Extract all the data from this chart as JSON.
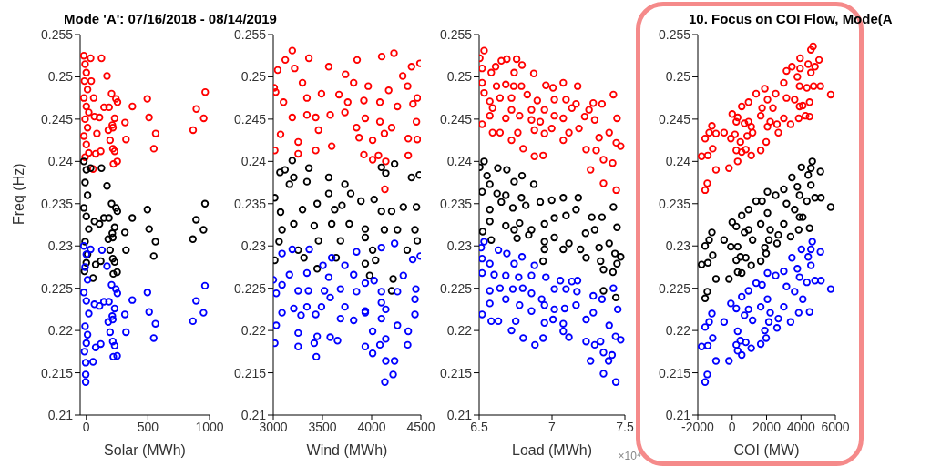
{
  "chart_data": [
    {
      "type": "scatter",
      "title": "Mode 'A': 07/16/2018 - 08/14/2019",
      "xlabel": "Solar (MWh)",
      "ylabel": "Freq (Hz)",
      "xlim": [
        -50,
        1000
      ],
      "xticks": [
        0,
        500,
        1000
      ],
      "ylim": [
        0.21,
        0.255
      ],
      "yticks": [
        0.21,
        0.215,
        0.22,
        0.225,
        0.23,
        0.235,
        0.24,
        0.245,
        0.25,
        0.255
      ],
      "marker": "circle",
      "series": [
        {
          "color": "#ff0000",
          "x": [
            -20,
            -10,
            0,
            -15,
            10,
            -20,
            0,
            20,
            -10,
            10,
            -20,
            0,
            20,
            -10,
            35,
            123,
            168,
            40,
            60,
            205,
            240,
            253,
            144,
            185,
            374,
            495,
            965,
            893,
            953,
            867,
            509,
            563,
            548,
            314,
            322,
            230,
            211,
            216,
            107,
            66,
            179,
            86,
            193,
            216,
            230,
            220,
            251,
            117,
            76,
            55
          ],
          "values": [
            0.2525,
            0.2515,
            0.2505,
            0.2495,
            0.2485,
            0.2475,
            0.2465,
            0.2458,
            0.245,
            0.244,
            0.243,
            0.242,
            0.241,
            0.2405,
            0.2522,
            0.2522,
            0.2501,
            0.2495,
            0.2475,
            0.248,
            0.2474,
            0.247,
            0.2464,
            0.2464,
            0.2465,
            0.2474,
            0.2482,
            0.2462,
            0.2451,
            0.2437,
            0.2452,
            0.2433,
            0.2415,
            0.2446,
            0.2426,
            0.2451,
            0.2443,
            0.244,
            0.2452,
            0.2453,
            0.2437,
            0.2433,
            0.2425,
            0.2415,
            0.2412,
            0.2397,
            0.24,
            0.2412,
            0.2409,
            0.2391
          ]
        },
        {
          "color": "#000000",
          "x": [
            963,
            891,
            951,
            865,
            496,
            510,
            561,
            547,
            373,
            313,
            322,
            252,
            240,
            205,
            230,
            211,
            215,
            193,
            215,
            230,
            219,
            250,
            178,
            143,
            184,
            107,
            66,
            123,
            35,
            168,
            117,
            76,
            55,
            -20,
            0,
            -10,
            10,
            -20,
            0,
            20,
            -10,
            10,
            0,
            -15
          ],
          "values": [
            0.235,
            0.2331,
            0.2319,
            0.2308,
            0.2343,
            0.232,
            0.2305,
            0.2288,
            0.2333,
            0.2316,
            0.2295,
            0.2341,
            0.2345,
            0.235,
            0.2322,
            0.2315,
            0.231,
            0.2295,
            0.2285,
            0.2281,
            0.2267,
            0.2269,
            0.2308,
            0.2333,
            0.2333,
            0.2326,
            0.2329,
            0.2392,
            0.2392,
            0.2371,
            0.2282,
            0.2278,
            0.2262,
            0.24,
            0.239,
            0.2375,
            0.236,
            0.2345,
            0.2335,
            0.232,
            0.2305,
            0.229,
            0.228,
            0.227
          ]
        },
        {
          "color": "#0000ff",
          "x": [
            963,
            891,
            951,
            865,
            496,
            510,
            561,
            547,
            373,
            313,
            322,
            252,
            240,
            205,
            230,
            211,
            215,
            193,
            215,
            230,
            219,
            250,
            178,
            143,
            184,
            107,
            66,
            127,
            35,
            168,
            117,
            76,
            55,
            -20,
            0,
            -10,
            10,
            -20,
            0,
            20,
            -10,
            10,
            0,
            -15,
            -5,
            -5,
            -5
          ],
          "values": [
            0.2253,
            0.2235,
            0.2221,
            0.2211,
            0.2245,
            0.2222,
            0.2208,
            0.2191,
            0.2236,
            0.2219,
            0.2198,
            0.2244,
            0.2249,
            0.2254,
            0.2226,
            0.2217,
            0.2213,
            0.2198,
            0.2187,
            0.2182,
            0.2169,
            0.217,
            0.221,
            0.2234,
            0.2234,
            0.2229,
            0.2231,
            0.2295,
            0.2296,
            0.2276,
            0.2184,
            0.218,
            0.2163,
            0.23,
            0.229,
            0.2275,
            0.226,
            0.2245,
            0.2235,
            0.222,
            0.2205,
            0.2195,
            0.2185,
            0.2175,
            0.2162,
            0.2148,
            0.2139
          ]
        }
      ]
    },
    {
      "type": "scatter",
      "xlabel": "Wind (MWh)",
      "xlim": [
        3000,
        4500
      ],
      "xticks": [
        3000,
        3500,
        4000,
        4500
      ],
      "ylim": [
        0.21,
        0.255
      ],
      "yticks": [
        0.21,
        0.215,
        0.22,
        0.225,
        0.23,
        0.235,
        0.24,
        0.245,
        0.25,
        0.255
      ],
      "marker": "circle",
      "series": [
        {
          "color": "#ff0000",
          "x": [
            3193,
            3362,
            3122,
            3045,
            3217,
            3564,
            3734,
            3852,
            4102,
            4227,
            4491,
            4405,
            4316,
            3009,
            3024,
            3297,
            3817,
            3965,
            4173,
            4366,
            4464,
            3104,
            3342,
            3490,
            3668,
            3757,
            3921,
            4084,
            4262,
            4420,
            3193,
            3342,
            3431,
            3579,
            3728,
            3846,
            3935,
            4084,
            4203,
            4455,
            3074,
            3253,
            3460,
            3594,
            3872,
            4010,
            4129,
            4372,
            4464,
            3015,
            3253,
            3431,
            3921,
            4010,
            4069,
            4143,
            4134,
            4372
          ],
          "values": [
            0.2531,
            0.2522,
            0.252,
            0.2508,
            0.251,
            0.2512,
            0.2503,
            0.252,
            0.2524,
            0.2528,
            0.2516,
            0.2512,
            0.2501,
            0.2487,
            0.2482,
            0.2493,
            0.2493,
            0.2489,
            0.2484,
            0.2489,
            0.2475,
            0.247,
            0.2475,
            0.248,
            0.2479,
            0.247,
            0.2472,
            0.247,
            0.2465,
            0.2468,
            0.2452,
            0.2455,
            0.2452,
            0.2455,
            0.2458,
            0.244,
            0.2451,
            0.2447,
            0.244,
            0.2447,
            0.2432,
            0.2423,
            0.2437,
            0.2418,
            0.2428,
            0.2425,
            0.2433,
            0.2427,
            0.2426,
            0.2413,
            0.2409,
            0.2413,
            0.2408,
            0.2402,
            0.2407,
            0.24,
            0.2367,
            0.2407
          ]
        },
        {
          "color": "#000000",
          "x": [
            3193,
            3068,
            3119,
            3362,
            3208,
            3164,
            3342,
            3564,
            3728,
            3015,
            3074,
            3297,
            3446,
            3564,
            3624,
            3698,
            3787,
            3891,
            4025,
            4099,
            4143,
            4233,
            4405,
            4485,
            4455,
            4322,
            4203,
            4099,
            3208,
            3416,
            3594,
            3772,
            3935,
            4129,
            4262,
            4440,
            3089,
            3059,
            3253,
            3460,
            3683,
            3935,
            4010,
            4361,
            4464,
            3015,
            3312,
            3639,
            3935,
            4040,
            3446,
            3980,
            4218,
            4203
          ],
          "values": [
            0.2401,
            0.2387,
            0.239,
            0.2392,
            0.2381,
            0.2373,
            0.2376,
            0.2381,
            0.2373,
            0.2357,
            0.234,
            0.2343,
            0.235,
            0.2362,
            0.2343,
            0.2348,
            0.2362,
            0.2353,
            0.2355,
            0.2393,
            0.2386,
            0.2397,
            0.2381,
            0.2384,
            0.2346,
            0.2346,
            0.2341,
            0.2341,
            0.2326,
            0.2324,
            0.2326,
            0.2326,
            0.232,
            0.2319,
            0.2319,
            0.2319,
            0.2319,
            0.2305,
            0.2295,
            0.2306,
            0.2306,
            0.231,
            0.2295,
            0.2295,
            0.2306,
            0.2283,
            0.2286,
            0.2286,
            0.2279,
            0.2283,
            0.2273,
            0.2265,
            0.2261,
            0.2247
          ]
        },
        {
          "color": "#0000ff",
          "x": [
            3089,
            3193,
            3366,
            3594,
            3846,
            4099,
            4233,
            4494,
            3000,
            3089,
            3164,
            3342,
            3505,
            3564,
            3728,
            3817,
            3935,
            4025,
            4322,
            4417,
            3030,
            3253,
            3357,
            3520,
            3683,
            3846,
            4099,
            4262,
            4449,
            3208,
            3342,
            3490,
            3579,
            3728,
            3935,
            4099,
            4143,
            4440,
            3089,
            3282,
            3431,
            3683,
            3817,
            3935,
            4099,
            4262,
            4440,
            3030,
            3253,
            3446,
            3579,
            4010,
            4372,
            3015,
            3253,
            3416,
            3653,
            3935,
            4084,
            4143,
            4366,
            3437,
            4010,
            4143,
            4233,
            4218,
            4134
          ],
          "values": [
            0.2291,
            0.2296,
            0.2296,
            0.2286,
            0.2293,
            0.2298,
            0.2303,
            0.2288,
            0.226,
            0.2254,
            0.2266,
            0.2268,
            0.2277,
            0.2263,
            0.2277,
            0.2266,
            0.2256,
            0.2259,
            0.2265,
            0.2284,
            0.2244,
            0.2247,
            0.2247,
            0.2247,
            0.2249,
            0.2246,
            0.2246,
            0.2246,
            0.2249,
            0.2226,
            0.2228,
            0.2228,
            0.2239,
            0.2228,
            0.2223,
            0.2233,
            0.2225,
            0.2237,
            0.2221,
            0.2218,
            0.2219,
            0.2214,
            0.2212,
            0.2221,
            0.2214,
            0.2206,
            0.2219,
            0.2206,
            0.2197,
            0.2193,
            0.2192,
            0.2199,
            0.2199,
            0.2185,
            0.2181,
            0.2185,
            0.2188,
            0.2181,
            0.2183,
            0.219,
            0.2183,
            0.2169,
            0.2173,
            0.2164,
            0.2164,
            0.2148,
            0.2139
          ]
        }
      ]
    },
    {
      "type": "scatter",
      "xlabel": "Load (MWh)",
      "annotations": [
        "×10⁴"
      ],
      "xlim": [
        6.5,
        7.5
      ],
      "xticks": [
        6.5,
        7,
        7.5
      ],
      "ylim": [
        0.21,
        0.255
      ],
      "yticks": [
        0.21,
        0.215,
        0.22,
        0.225,
        0.23,
        0.235,
        0.24,
        0.245,
        0.25,
        0.255
      ],
      "marker": "circle",
      "series": [
        {
          "color": "#ff0000",
          "x": [
            6.504,
            6.534,
            6.52,
            6.583,
            6.613,
            6.652,
            6.69,
            6.757,
            6.794,
            6.875,
            6.74,
            6.52,
            6.534,
            6.619,
            6.683,
            6.737,
            6.79,
            6.958,
            7.007,
            7.077,
            7.176,
            7.421,
            6.573,
            6.643,
            6.722,
            6.83,
            6.899,
            7.016,
            7.096,
            7.165,
            7.283,
            7.343,
            6.592,
            6.722,
            6.859,
            6.948,
            7.136,
            7.254,
            6.52,
            6.573,
            6.683,
            6.777,
            6.859,
            6.919,
            7.016,
            7.077,
            7.224,
            7.293,
            7.446,
            6.592,
            6.643,
            6.722,
            6.765,
            6.879,
            6.948,
            6.998,
            7.077,
            7.116,
            7.185,
            7.323,
            7.392,
            7.441,
            6.802,
            6.939,
            6.879,
            7.234,
            7.303,
            7.353,
            7.471,
            7.416,
            7.264,
            7.353,
            7.441
          ],
          "values": [
            0.2522,
            0.2531,
            0.251,
            0.2505,
            0.2512,
            0.2519,
            0.2521,
            0.2521,
            0.2514,
            0.2504,
            0.2505,
            0.2493,
            0.2481,
            0.2489,
            0.2491,
            0.2489,
            0.2489,
            0.249,
            0.2487,
            0.2493,
            0.2489,
            0.2479,
            0.2471,
            0.2475,
            0.2475,
            0.2479,
            0.2472,
            0.2473,
            0.2473,
            0.2468,
            0.2469,
            0.2468,
            0.2463,
            0.2461,
            0.2461,
            0.2461,
            0.2463,
            0.2461,
            0.2444,
            0.2454,
            0.2451,
            0.2454,
            0.2449,
            0.2447,
            0.2454,
            0.2451,
            0.2453,
            0.2449,
            0.2451,
            0.2434,
            0.2434,
            0.2425,
            0.2434,
            0.2437,
            0.2433,
            0.2439,
            0.2425,
            0.2434,
            0.2439,
            0.2428,
            0.2434,
            0.2422,
            0.2415,
            0.2407,
            0.2406,
            0.2414,
            0.2413,
            0.2402,
            0.2418,
            0.2398,
            0.239,
            0.2374,
            0.2366
          ]
        },
        {
          "color": "#000000",
          "x": [
            6.504,
            6.534,
            6.554,
            6.628,
            6.69,
            6.74,
            6.794,
            6.875,
            6.573,
            6.52,
            6.623,
            6.683,
            6.79,
            6.573,
            6.652,
            6.731,
            6.82,
            6.919,
            6.998,
            7.077,
            7.18,
            7.421,
            6.573,
            6.683,
            6.777,
            6.859,
            6.948,
            7.016,
            7.096,
            7.165,
            7.273,
            7.343,
            6.524,
            6.583,
            6.74,
            6.84,
            6.948,
            7.016,
            7.116,
            7.23,
            7.293,
            7.446,
            6.76,
            6.948,
            7.077,
            7.195,
            7.323,
            7.392,
            7.432,
            6.939,
            7.234,
            7.333,
            7.471,
            7.353,
            7.418,
            7.446,
            7.353,
            7.438
          ],
          "values": [
            0.2393,
            0.24,
            0.2383,
            0.2392,
            0.239,
            0.2376,
            0.2383,
            0.2373,
            0.2373,
            0.2364,
            0.2362,
            0.236,
            0.2357,
            0.2343,
            0.2352,
            0.2345,
            0.2348,
            0.2352,
            0.2354,
            0.2357,
            0.2357,
            0.2346,
            0.2329,
            0.2324,
            0.2327,
            0.2319,
            0.2326,
            0.2333,
            0.2336,
            0.2343,
            0.2334,
            0.2334,
            0.2317,
            0.2307,
            0.2319,
            0.2313,
            0.2305,
            0.231,
            0.2303,
            0.2315,
            0.2319,
            0.2322,
            0.2309,
            0.2296,
            0.2296,
            0.2296,
            0.2298,
            0.2303,
            0.2291,
            0.2282,
            0.2286,
            0.2282,
            0.2287,
            0.2272,
            0.2269,
            0.2279,
            0.2247,
            0.2239
          ]
        },
        {
          "color": "#0000ff",
          "x": [
            6.514,
            6.534,
            6.52,
            6.573,
            6.632,
            6.69,
            6.74,
            6.794,
            6.879,
            6.52,
            6.603,
            6.683,
            6.771,
            6.859,
            6.958,
            7.057,
            7.136,
            7.175,
            6.573,
            6.643,
            6.731,
            6.799,
            6.859,
            6.929,
            7.016,
            7.096,
            7.171,
            7.283,
            7.421,
            6.573,
            6.683,
            6.777,
            6.859,
            6.948,
            7.016,
            7.087,
            7.165,
            7.343,
            7.451,
            6.52,
            6.583,
            6.632,
            6.751,
            6.948,
            7.007,
            7.077,
            7.234,
            7.283,
            7.392,
            6.722,
            6.802,
            6.939,
            7.077,
            7.116,
            7.234,
            7.293,
            7.333,
            7.436,
            7.471,
            6.883,
            7.264,
            7.353,
            7.388,
            7.412,
            7.353,
            7.438
          ],
          "values": [
            0.2298,
            0.2305,
            0.2285,
            0.2279,
            0.2295,
            0.2291,
            0.2279,
            0.2287,
            0.2277,
            0.2268,
            0.2266,
            0.2265,
            0.2263,
            0.2265,
            0.2263,
            0.2259,
            0.2258,
            0.2259,
            0.2247,
            0.225,
            0.2249,
            0.225,
            0.2244,
            0.2237,
            0.2249,
            0.2249,
            0.2246,
            0.2241,
            0.225,
            0.2232,
            0.2237,
            0.223,
            0.2223,
            0.223,
            0.2225,
            0.2226,
            0.223,
            0.2237,
            0.2225,
            0.2219,
            0.2211,
            0.2211,
            0.2211,
            0.2209,
            0.2213,
            0.2208,
            0.2213,
            0.2221,
            0.2206,
            0.22,
            0.2191,
            0.2191,
            0.2199,
            0.2192,
            0.2187,
            0.2183,
            0.2187,
            0.2193,
            0.2189,
            0.2183,
            0.2164,
            0.2174,
            0.2164,
            0.2171,
            0.2149,
            0.2139
          ]
        }
      ]
    },
    {
      "type": "scatter",
      "title": "10. Focus on COI Flow, Mode(A",
      "xlabel": "COI (MW)",
      "xlim": [
        -2000,
        6000
      ],
      "xticks": [
        -2000,
        0,
        2000,
        4000,
        6000
      ],
      "ylim": [
        0.21,
        0.255
      ],
      "yticks": [
        0.21,
        0.215,
        0.22,
        0.225,
        0.23,
        0.235,
        0.24,
        0.245,
        0.25,
        0.255
      ],
      "marker": "circle",
      "series": [
        {
          "color": "#ff0000",
          "x": [
            -1779,
            -1416,
            -1574,
            -1448,
            -943,
            -185,
            -1574,
            -1337,
            -943,
            -1179,
            -469,
            -1132,
            -75,
            240,
            4,
            319,
            162,
            477,
            240,
            556,
            319,
            793,
            1109,
            714,
            951,
            872,
            1188,
            1109,
            556,
            951,
            1393,
            1661,
            1898,
            2055,
            1740,
            2213,
            2055,
            1661,
            1977,
            2371,
            2529,
            2687,
            2608,
            3002,
            3002,
            3160,
            3397,
            3160,
            3476,
            3791,
            3633,
            3949,
            3918,
            3870,
            3918,
            4344,
            4107,
            4501,
            4265,
            4501,
            3949,
            4423,
            4580,
            4707,
            5054,
            4817,
            4738,
            5133,
            4580,
            5732
          ],
          "values": [
            0.2406,
            0.2407,
            0.2366,
            0.2374,
            0.239,
            0.2392,
            0.2427,
            0.2434,
            0.2433,
            0.2442,
            0.2434,
            0.2415,
            0.2427,
            0.2447,
            0.2456,
            0.2452,
            0.2432,
            0.2423,
            0.2413,
            0.2411,
            0.24,
            0.2414,
            0.2407,
            0.2445,
            0.2447,
            0.243,
            0.2434,
            0.2441,
            0.2465,
            0.247,
            0.248,
            0.2454,
            0.2486,
            0.2473,
            0.2463,
            0.2447,
            0.2441,
            0.2413,
            0.2423,
            0.2463,
            0.248,
            0.2434,
            0.2444,
            0.2451,
            0.2493,
            0.2475,
            0.2444,
            0.2507,
            0.2512,
            0.25,
            0.2473,
            0.251,
            0.2489,
            0.2451,
            0.2465,
            0.2487,
            0.2466,
            0.247,
            0.2454,
            0.2453,
            0.2522,
            0.2515,
            0.2532,
            0.2536,
            0.252,
            0.2512,
            0.2489,
            0.2489,
            0.2505,
            0.2479
          ]
        },
        {
          "color": "#000000",
          "x": [
            -1779,
            -1416,
            -1574,
            -1448,
            -943,
            -185,
            -1574,
            -1179,
            -1337,
            -469,
            -1132,
            -75,
            240,
            4,
            319,
            240,
            477,
            556,
            319,
            793,
            1109,
            714,
            951,
            1188,
            556,
            951,
            1393,
            1661,
            1740,
            2055,
            2055,
            2213,
            2134,
            1898,
            1661,
            1977,
            2608,
            2687,
            2529,
            3002,
            3002,
            3160,
            3397,
            3476,
            3791,
            3633,
            3918,
            3870,
            3918,
            4107,
            4501,
            4344,
            4028,
            4423,
            4659,
            4580,
            5133,
            4817,
            5165,
            4580,
            5732
          ],
          "values": [
            0.2278,
            0.228,
            0.2238,
            0.2246,
            0.2261,
            0.2261,
            0.23,
            0.2316,
            0.2307,
            0.2307,
            0.2289,
            0.2299,
            0.2323,
            0.2328,
            0.2299,
            0.2283,
            0.2287,
            0.2268,
            0.2269,
            0.2286,
            0.2277,
            0.2316,
            0.2319,
            0.2307,
            0.2336,
            0.2343,
            0.2353,
            0.2326,
            0.2353,
            0.2364,
            0.2339,
            0.2319,
            0.2307,
            0.2298,
            0.2282,
            0.2291,
            0.2303,
            0.2313,
            0.236,
            0.2367,
            0.2326,
            0.235,
            0.2311,
            0.2381,
            0.237,
            0.2343,
            0.236,
            0.2319,
            0.2334,
            0.2334,
            0.2321,
            0.2353,
            0.2393,
            0.2384,
            0.24,
            0.2392,
            0.2388,
            0.2357,
            0.2357,
            0.2372,
            0.2346
          ]
        },
        {
          "color": "#0000ff",
          "x": [
            -1779,
            -1416,
            -1574,
            -1448,
            -943,
            -185,
            -1574,
            -1179,
            -1337,
            -469,
            -1132,
            -75,
            240,
            319,
            240,
            477,
            556,
            319,
            793,
            1109,
            714,
            951,
            1188,
            556,
            951,
            1393,
            1661,
            1740,
            2055,
            2055,
            2213,
            2134,
            1898,
            1661,
            1977,
            2608,
            2687,
            2529,
            3002,
            3002,
            3160,
            3397,
            3476,
            3791,
            3633,
            3918,
            3870,
            4107,
            4501,
            4344,
            4028,
            4423,
            4659,
            4580,
            5133,
            4817,
            5165,
            4580,
            5732
          ],
          "values": [
            0.2181,
            0.2182,
            0.2139,
            0.2148,
            0.2164,
            0.2164,
            0.2204,
            0.222,
            0.221,
            0.221,
            0.2191,
            0.2232,
            0.2226,
            0.2199,
            0.2183,
            0.2188,
            0.2171,
            0.2176,
            0.2186,
            0.2179,
            0.2218,
            0.2225,
            0.2212,
            0.224,
            0.2247,
            0.2256,
            0.2228,
            0.2254,
            0.2268,
            0.2237,
            0.2221,
            0.221,
            0.22,
            0.2184,
            0.2191,
            0.2203,
            0.2214,
            0.2265,
            0.227,
            0.2228,
            0.2252,
            0.221,
            0.2286,
            0.2273,
            0.2246,
            0.2263,
            0.2221,
            0.2237,
            0.2222,
            0.2257,
            0.2296,
            0.2287,
            0.2305,
            0.2296,
            0.2293,
            0.2259,
            0.2259,
            0.2277,
            0.2249
          ]
        }
      ]
    }
  ]
}
